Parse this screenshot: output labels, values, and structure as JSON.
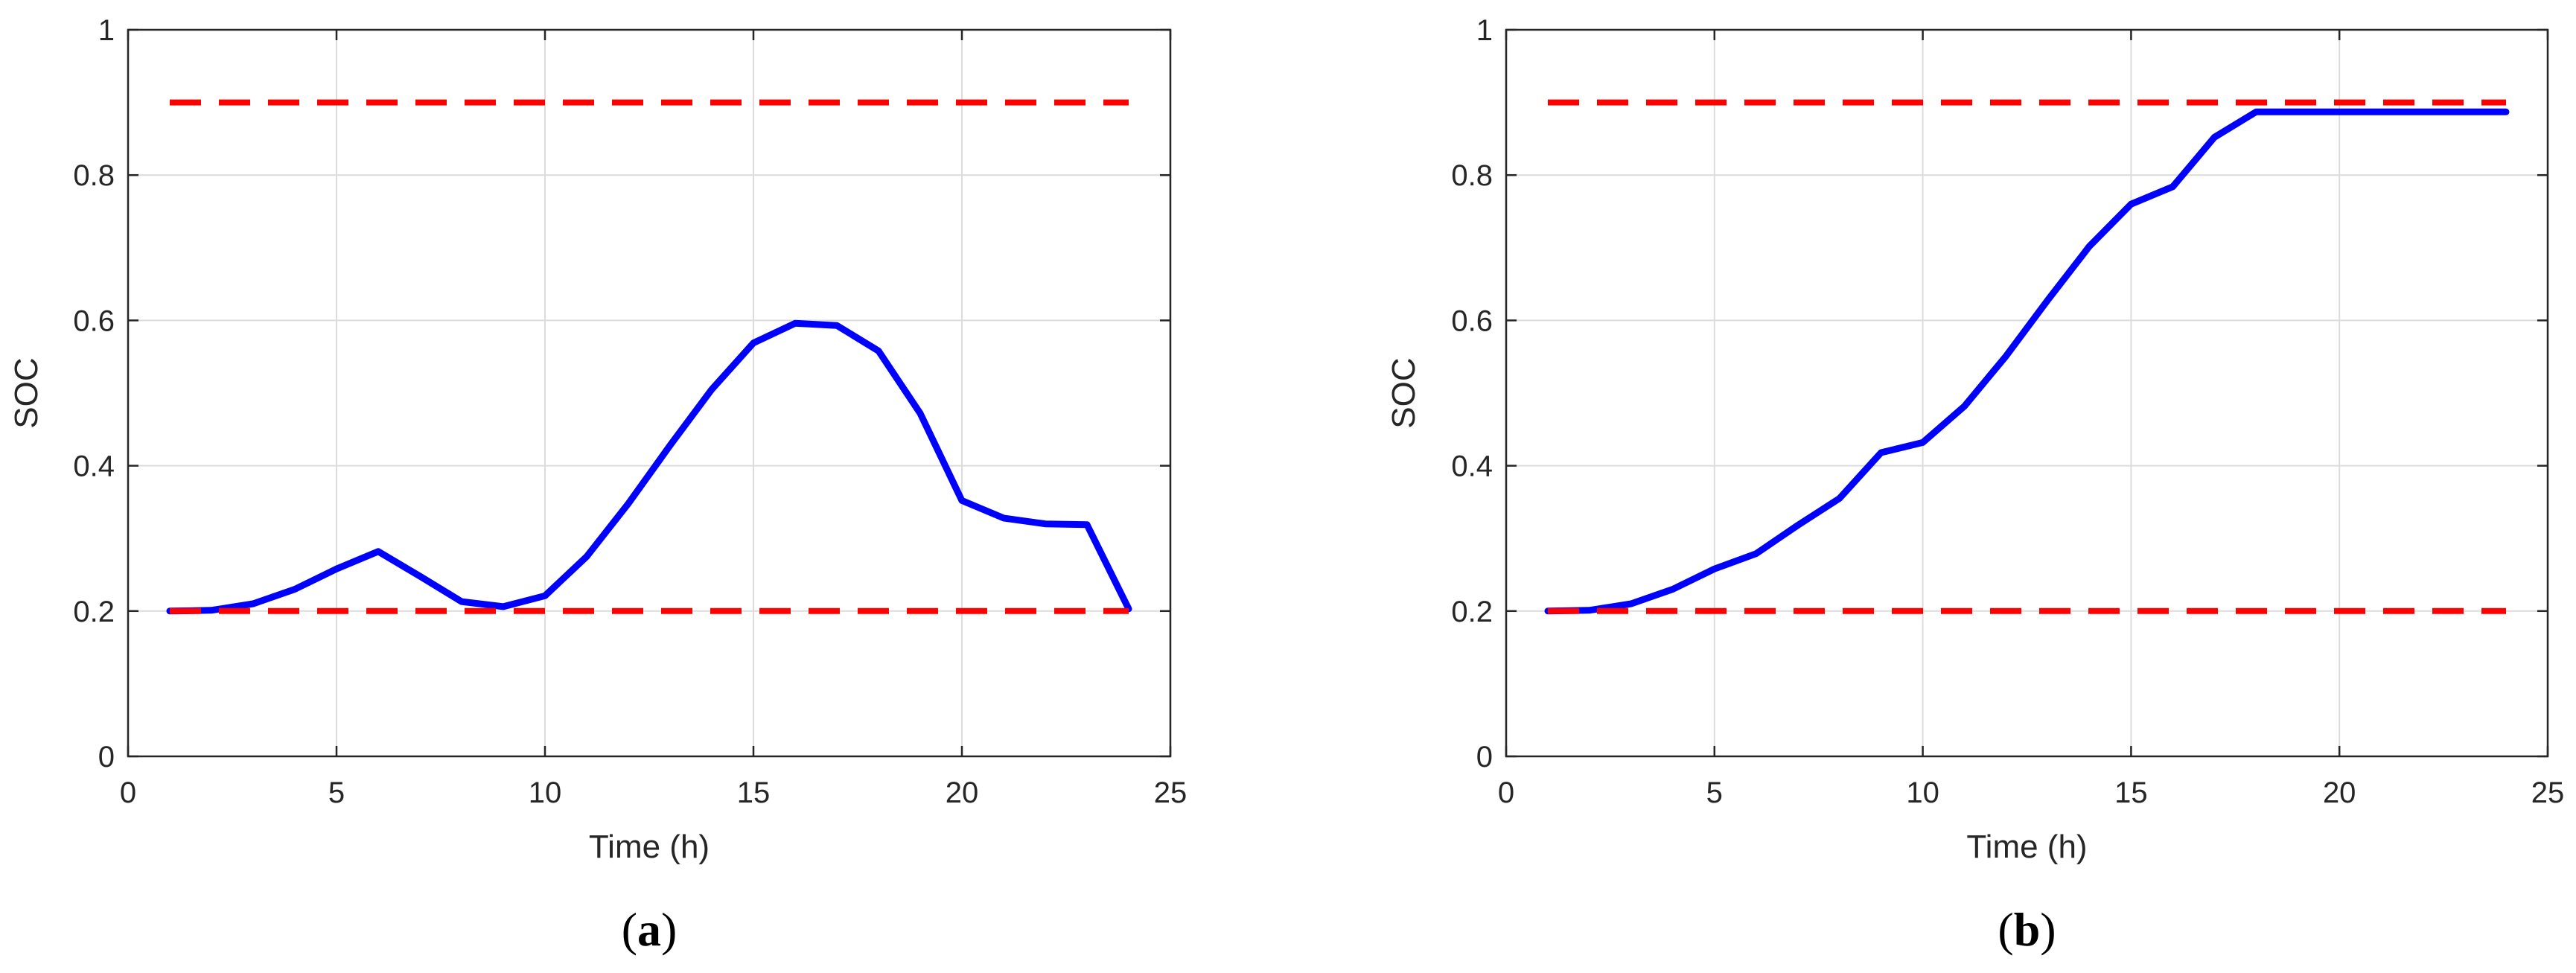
{
  "chart_data": [
    {
      "type": "line",
      "panel_label": "(a)",
      "xlabel": "Time (h)",
      "ylabel": "SOC",
      "xlim": [
        0,
        25
      ],
      "ylim": [
        0,
        1
      ],
      "xticks": [
        0,
        5,
        10,
        15,
        20,
        25
      ],
      "yticks": [
        0,
        0.2,
        0.4,
        0.6,
        0.8,
        1
      ],
      "grid": true,
      "series": [
        {
          "color": "#0000ff",
          "style": "solid",
          "x": [
            1,
            2,
            3,
            4,
            5,
            6,
            7,
            8,
            9,
            10,
            11,
            12,
            13,
            14,
            15,
            16,
            17,
            18,
            19,
            20,
            21,
            22,
            23,
            24
          ],
          "y": [
            0.2,
            0.201,
            0.21,
            0.23,
            0.258,
            0.282,
            0.248,
            0.213,
            0.206,
            0.221,
            0.275,
            0.348,
            0.428,
            0.505,
            0.569,
            0.596,
            0.593,
            0.558,
            0.472,
            0.352,
            0.328,
            0.32,
            0.319,
            0.203
          ]
        },
        {
          "color": "#ff0000",
          "style": "dashed",
          "x": [
            1,
            24
          ],
          "y": [
            0.9,
            0.9
          ]
        },
        {
          "color": "#ff0000",
          "style": "dashed",
          "x": [
            1,
            24
          ],
          "y": [
            0.2,
            0.2
          ]
        }
      ]
    },
    {
      "type": "line",
      "panel_label": "(b)",
      "xlabel": "Time (h)",
      "ylabel": "SOC",
      "xlim": [
        0,
        25
      ],
      "ylim": [
        0,
        1
      ],
      "xticks": [
        0,
        5,
        10,
        15,
        20,
        25
      ],
      "yticks": [
        0,
        0.2,
        0.4,
        0.6,
        0.8,
        1
      ],
      "grid": true,
      "series": [
        {
          "color": "#0000ff",
          "style": "solid",
          "x": [
            1,
            2,
            3,
            4,
            5,
            6,
            7,
            8,
            9,
            10,
            11,
            12,
            13,
            14,
            15,
            16,
            17,
            18,
            19,
            20,
            21,
            22,
            23,
            24
          ],
          "y": [
            0.2,
            0.201,
            0.21,
            0.23,
            0.258,
            0.279,
            0.318,
            0.355,
            0.418,
            0.432,
            0.482,
            0.551,
            0.628,
            0.702,
            0.76,
            0.784,
            0.852,
            0.887,
            0.887,
            0.887,
            0.887,
            0.887,
            0.887,
            0.887
          ]
        },
        {
          "color": "#ff0000",
          "style": "dashed",
          "x": [
            1,
            24
          ],
          "y": [
            0.9,
            0.9
          ]
        },
        {
          "color": "#ff0000",
          "style": "dashed",
          "x": [
            1,
            24
          ],
          "y": [
            0.2,
            0.2
          ]
        }
      ]
    }
  ]
}
